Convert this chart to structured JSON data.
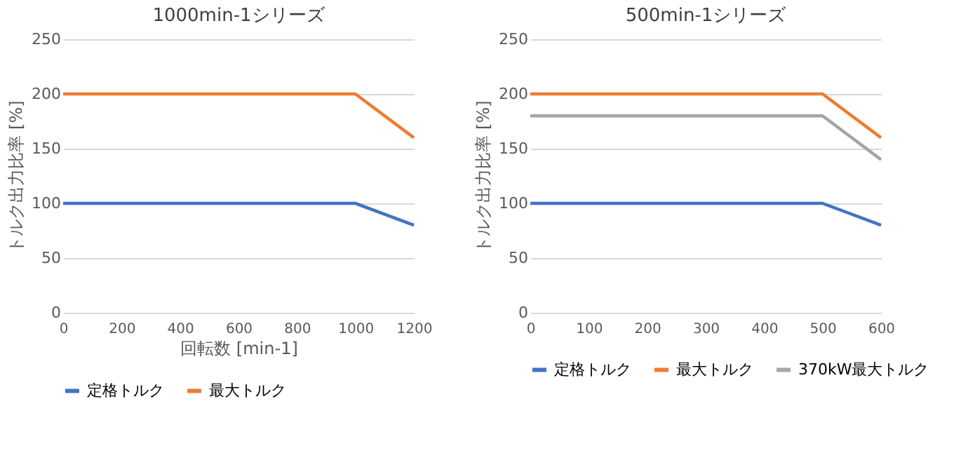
{
  "chart_data": [
    {
      "type": "line",
      "title": "1000min-1シリーズ",
      "xlabel": "回転数 [min-1]",
      "ylabel": "トルク出力比率 [%]",
      "xlim": [
        0,
        1200
      ],
      "xticks": [
        0,
        200,
        400,
        600,
        800,
        1000,
        1200
      ],
      "ylim": [
        0,
        250
      ],
      "yticks": [
        0,
        50,
        100,
        150,
        200,
        250
      ],
      "grid": "y",
      "legend": "bottom",
      "marker": "none",
      "line_style": "solid",
      "series": [
        {
          "name": "定格トルク",
          "color": "#4472c4",
          "x": [
            0,
            1000,
            1200
          ],
          "values": [
            100,
            100,
            80
          ]
        },
        {
          "name": "最大トルク",
          "color": "#ed7d31",
          "x": [
            0,
            1000,
            1200
          ],
          "values": [
            200,
            200,
            160
          ]
        }
      ]
    },
    {
      "type": "line",
      "title": "500min-1シリーズ",
      "ylabel": "トルク出力比率 [%]",
      "xlim": [
        0,
        600
      ],
      "xticks": [
        0,
        100,
        200,
        300,
        400,
        500,
        600
      ],
      "ylim": [
        0,
        250
      ],
      "yticks": [
        0,
        50,
        100,
        150,
        200,
        250
      ],
      "grid": "y",
      "legend": "bottom",
      "marker": "none",
      "line_style": "solid",
      "series": [
        {
          "name": "定格トルク",
          "color": "#4472c4",
          "x": [
            0,
            500,
            600
          ],
          "values": [
            100,
            100,
            80
          ]
        },
        {
          "name": "最大トルク",
          "color": "#ed7d31",
          "x": [
            0,
            500,
            600
          ],
          "values": [
            200,
            200,
            160
          ]
        },
        {
          "name": "370kW最大トルク",
          "color": "#a5a5a5",
          "x": [
            0,
            500,
            600
          ],
          "values": [
            180,
            180,
            140
          ]
        }
      ]
    }
  ]
}
